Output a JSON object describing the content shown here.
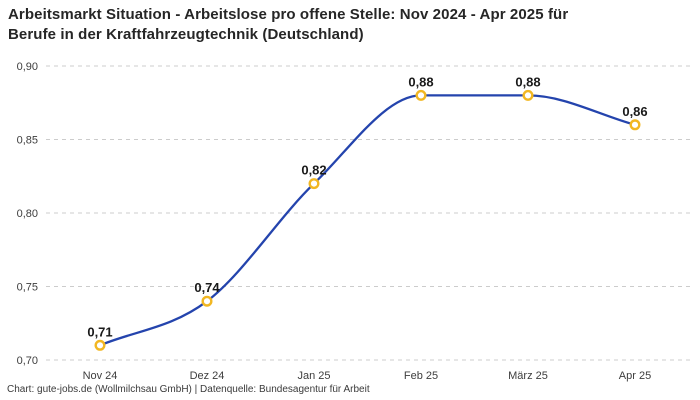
{
  "header": {
    "title_line1": "Arbeitsmarkt Situation - Arbeitslose pro offene Stelle: Nov 2024 - Apr 2025 für",
    "title_line2": "Berufe in der Kraftfahrzeugtechnik (Deutschland)"
  },
  "footer": {
    "credit": "Chart: gute-jobs.de (Wollmilchsau GmbH) | Datenquelle: Bundesagentur für Arbeit"
  },
  "chart_data": {
    "type": "line",
    "title": "Arbeitsmarkt Situation - Arbeitslose pro offene Stelle: Nov 2024 - Apr 2025 für Berufe in der Kraftfahrzeugtechnik (Deutschland)",
    "categories": [
      "Nov 24",
      "Dez 24",
      "Jan 25",
      "Feb 25",
      "März 25",
      "Apr 25"
    ],
    "values": [
      0.71,
      0.74,
      0.82,
      0.88,
      0.88,
      0.86
    ],
    "point_labels": [
      "0,71",
      "0,74",
      "0,82",
      "0,88",
      "0,88",
      "0,86"
    ],
    "y_ticks": [
      {
        "value": 0.9,
        "label": "0,90"
      },
      {
        "value": 0.85,
        "label": "0,85"
      },
      {
        "value": 0.8,
        "label": "0,80"
      },
      {
        "value": 0.75,
        "label": "0,75"
      },
      {
        "value": 0.7,
        "label": "0,70"
      }
    ],
    "ylim": [
      0.7,
      0.9
    ],
    "xlabel": "",
    "ylabel": "",
    "grid": "horizontal-dashed",
    "legend": "none",
    "interpolation": "monotone-spline",
    "colors": {
      "line": "#2444ad",
      "marker_stroke": "#f2b722",
      "marker_fill": "#ffffff",
      "grid": "#cccccc",
      "tick_text": "#3d3d3d",
      "point_label_text": "#1a1a1a"
    }
  }
}
